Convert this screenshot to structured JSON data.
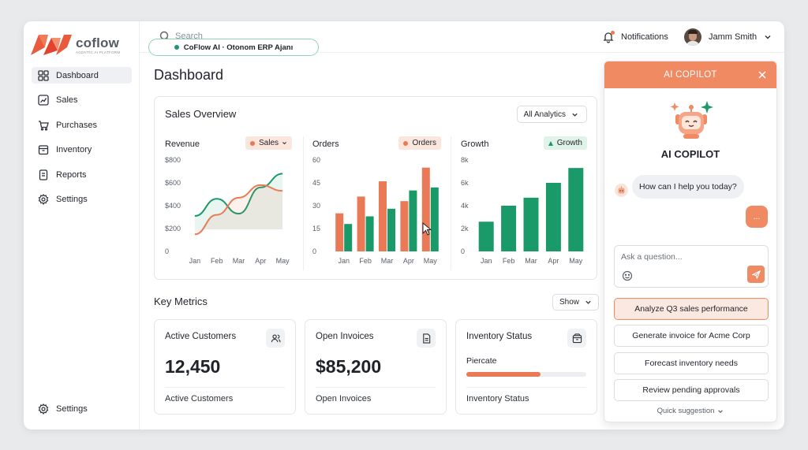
{
  "brand": {
    "name": "coflow",
    "tagline": "AGENTIC AI PLATFORM",
    "accent": "#ea7a55",
    "green": "#1a9a68"
  },
  "sidebar": {
    "items": [
      {
        "label": "Dashboard",
        "icon": "grid-icon",
        "active": true
      },
      {
        "label": "Sales",
        "icon": "trend-icon"
      },
      {
        "label": "Purchases",
        "icon": "cart-icon"
      },
      {
        "label": "Inventory",
        "icon": "box-icon"
      },
      {
        "label": "Reports",
        "icon": "document-icon"
      },
      {
        "label": "Settings",
        "icon": "gear-icon"
      }
    ],
    "bottom": {
      "label": "Settings",
      "icon": "gear-icon"
    }
  },
  "topbar": {
    "search_placeholder": "Search",
    "ai_pill": "CoFlow AI · Otonom ERP Ajanı",
    "notifications": "Notifications",
    "user_name": "Jamm Smith"
  },
  "page": {
    "title": "Dashboard"
  },
  "sales_overview": {
    "title": "Sales Overview",
    "filter": "All Analytics"
  },
  "chart_data": [
    {
      "type": "line",
      "title": "Revenue",
      "legend_chip": "Sales",
      "categories": [
        "Jan",
        "Feb",
        "Mar",
        "Apr",
        "May"
      ],
      "y_ticks": [
        "$800",
        "$600",
        "$400",
        "$200",
        "0"
      ],
      "ylim": [
        0,
        800
      ],
      "series": [
        {
          "color": "#1a9a68",
          "values": [
            310,
            460,
            330,
            560,
            680
          ]
        },
        {
          "color": "#ea7a55",
          "values": [
            150,
            320,
            470,
            580,
            530
          ]
        }
      ]
    },
    {
      "type": "bar",
      "title": "Orders",
      "legend_chip": "Orders",
      "categories": [
        "Jan",
        "Feb",
        "Mar",
        "Apr",
        "May"
      ],
      "y_ticks": [
        "60",
        "45",
        "30",
        "15",
        "0"
      ],
      "ylim": [
        0,
        60
      ],
      "series": [
        {
          "color": "#ea7a55",
          "values": [
            25,
            36,
            46,
            33,
            55
          ]
        },
        {
          "color": "#1a9a68",
          "values": [
            18,
            23,
            28,
            40,
            42
          ]
        }
      ]
    },
    {
      "type": "bar",
      "title": "Growth",
      "legend_chip": "Growth",
      "categories": [
        "Jan",
        "Feb",
        "Mar",
        "Apr",
        "May"
      ],
      "y_ticks": [
        "8k",
        "6k",
        "4k",
        "2k",
        "0"
      ],
      "ylim": [
        0,
        8000
      ],
      "series": [
        {
          "color": "#1a9a68",
          "values": [
            2600,
            4000,
            4700,
            6000,
            7300
          ]
        }
      ]
    }
  ],
  "key_metrics": {
    "title": "Key Metrics",
    "show_label": "Show",
    "cards": [
      {
        "title": "Active Customers",
        "value": "12,450",
        "footer": "Active Customers",
        "icon": "users-icon"
      },
      {
        "title": "Open Invoices",
        "value": "$85,200",
        "footer": "Open Invoices",
        "icon": "invoice-icon"
      },
      {
        "title": "Inventory Status",
        "sub": "Piercate",
        "progress": 0.62,
        "footer": "Inventory Status",
        "icon": "package-icon"
      }
    ]
  },
  "copilot": {
    "header": "AI COPILOT",
    "title": "AI COPILOT",
    "assistant_message": "How can I help you today?",
    "user_message": "...",
    "input_placeholder": "Ask a question...",
    "suggestions": [
      "Analyze Q3 sales performance",
      "Generate invoice for Acme Corp",
      "Forecast inventory needs",
      "Review pending approvals"
    ],
    "quick": "Quick suggestion"
  }
}
